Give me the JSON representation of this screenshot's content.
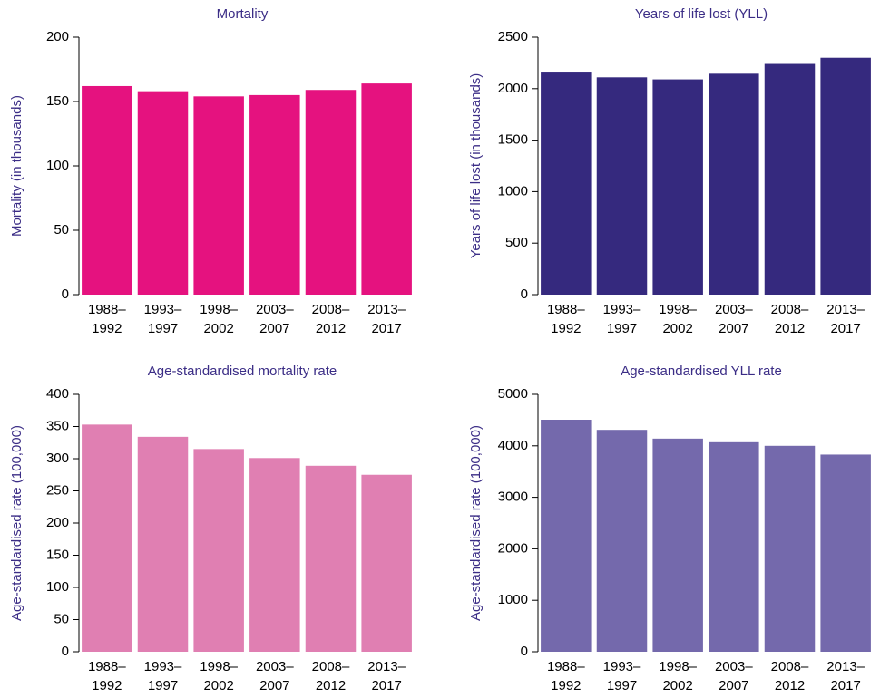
{
  "chart_data": [
    {
      "type": "bar",
      "title": "Mortality",
      "y_label": "Mortality (in thousands)",
      "categories": [
        [
          "1988–",
          "1992"
        ],
        [
          "1993–",
          "1997"
        ],
        [
          "1998–",
          "2002"
        ],
        [
          "2003–",
          "2007"
        ],
        [
          "2008–",
          "2012"
        ],
        [
          "2013–",
          "2017"
        ]
      ],
      "values": [
        162,
        158,
        154,
        155,
        159,
        164
      ],
      "color": "#e5127f",
      "ylim": [
        0,
        200
      ],
      "yticks": [
        0,
        50,
        100,
        150,
        200
      ]
    },
    {
      "type": "bar",
      "title": "Years of life lost (YLL)",
      "y_label": "Years of life lost (in thousands)",
      "categories": [
        [
          "1988–",
          "1992"
        ],
        [
          "1993–",
          "1997"
        ],
        [
          "1998–",
          "2002"
        ],
        [
          "2003–",
          "2007"
        ],
        [
          "2008–",
          "2012"
        ],
        [
          "2013–",
          "2017"
        ]
      ],
      "values": [
        2165,
        2110,
        2090,
        2145,
        2240,
        2300
      ],
      "color": "#35297e",
      "ylim": [
        0,
        2500
      ],
      "yticks": [
        0,
        500,
        1000,
        1500,
        2000,
        2500
      ]
    },
    {
      "type": "bar",
      "title": "Age-standardised mortality rate",
      "y_label": "Age-standardised rate (100,000)",
      "categories": [
        [
          "1988–",
          "1992"
        ],
        [
          "1993–",
          "1997"
        ],
        [
          "1998–",
          "2002"
        ],
        [
          "2003–",
          "2007"
        ],
        [
          "2008–",
          "2012"
        ],
        [
          "2013–",
          "2017"
        ]
      ],
      "values": [
        353,
        334,
        315,
        301,
        289,
        275
      ],
      "color": "#e07fb2",
      "ylim": [
        0,
        400
      ],
      "yticks": [
        0,
        50,
        100,
        150,
        200,
        250,
        300,
        350,
        400
      ]
    },
    {
      "type": "bar",
      "title": "Age-standardised YLL rate",
      "y_label": "Age-standardised rate (100,000)",
      "categories": [
        [
          "1988–",
          "1992"
        ],
        [
          "1993–",
          "1997"
        ],
        [
          "1998–",
          "2002"
        ],
        [
          "2003–",
          "2007"
        ],
        [
          "2008–",
          "2012"
        ],
        [
          "2013–",
          "2017"
        ]
      ],
      "values": [
        4507,
        4310,
        4140,
        4070,
        4000,
        3830
      ],
      "color": "#7469ac",
      "ylim": [
        0,
        5000
      ],
      "yticks": [
        0,
        1000,
        2000,
        3000,
        4000,
        5000
      ]
    }
  ]
}
